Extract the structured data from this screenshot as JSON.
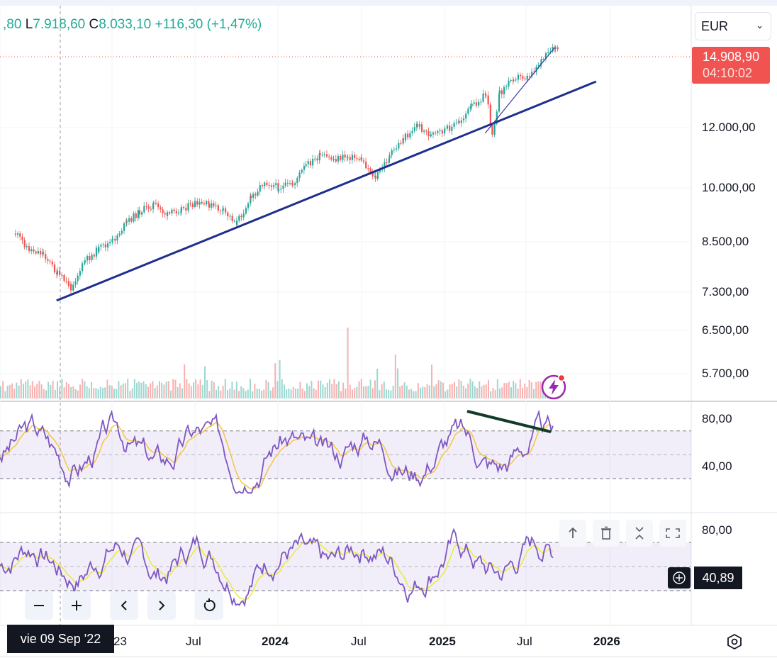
{
  "chart_data": {
    "type": "candlestick",
    "ohlc_header": {
      "open_fragment": ",80",
      "low_label": "L",
      "low": "7.918,60",
      "close_label": "C",
      "close": "8.033,10",
      "change": "+116,30 (+1,47%)"
    },
    "currency": "EUR",
    "last_price": "14.908,90",
    "countdown": "04:10:02",
    "price_scale": "log",
    "y_ticks": [
      "12.000,00",
      "10.000,00",
      "8.500,00",
      "7.300,00",
      "6.500,00",
      "5.700,00"
    ],
    "x_ticks": [
      "23",
      "Jul",
      "2024",
      "Jul",
      "2025",
      "Jul",
      "2026"
    ],
    "crosshair_date": "vie 09 Sep '22",
    "price_path": [
      {
        "x": "2022-06",
        "y": 8700
      },
      {
        "x": "2022-07",
        "y": 8300
      },
      {
        "x": "2022-08",
        "y": 8200
      },
      {
        "x": "2022-09",
        "y": 7700
      },
      {
        "x": "2022-10",
        "y": 7400
      },
      {
        "x": "2022-11",
        "y": 8000
      },
      {
        "x": "2022-12",
        "y": 8300
      },
      {
        "x": "2023-01",
        "y": 8500
      },
      {
        "x": "2023-02",
        "y": 9000
      },
      {
        "x": "2023-03",
        "y": 9300
      },
      {
        "x": "2023-04",
        "y": 9500
      },
      {
        "x": "2023-05",
        "y": 9200
      },
      {
        "x": "2023-06",
        "y": 9400
      },
      {
        "x": "2023-07",
        "y": 9500
      },
      {
        "x": "2023-08",
        "y": 9500
      },
      {
        "x": "2023-09",
        "y": 9300
      },
      {
        "x": "2023-10",
        "y": 9000
      },
      {
        "x": "2023-11",
        "y": 9700
      },
      {
        "x": "2023-12",
        "y": 10200
      },
      {
        "x": "2024-01",
        "y": 10000
      },
      {
        "x": "2024-02",
        "y": 10100
      },
      {
        "x": "2024-03",
        "y": 10700
      },
      {
        "x": "2024-04",
        "y": 11000
      },
      {
        "x": "2024-05",
        "y": 10900
      },
      {
        "x": "2024-06",
        "y": 11000
      },
      {
        "x": "2024-07",
        "y": 10900
      },
      {
        "x": "2024-08",
        "y": 10300
      },
      {
        "x": "2024-09",
        "y": 11000
      },
      {
        "x": "2024-10",
        "y": 11600
      },
      {
        "x": "2024-11",
        "y": 12100
      },
      {
        "x": "2024-12",
        "y": 11700
      },
      {
        "x": "2025-01",
        "y": 11900
      },
      {
        "x": "2025-02",
        "y": 12200
      },
      {
        "x": "2025-03",
        "y": 12800
      },
      {
        "x": "2025-04",
        "y": 13300
      },
      {
        "x": "2025-04-15",
        "y": 11800
      },
      {
        "x": "2025-05",
        "y": 13300
      },
      {
        "x": "2025-06",
        "y": 14000
      },
      {
        "x": "2025-07",
        "y": 14000
      },
      {
        "x": "2025-08",
        "y": 14700
      },
      {
        "x": "2025-09",
        "y": 15300
      },
      {
        "x": "2025-09-10",
        "y": 14909
      }
    ],
    "trendlines": [
      {
        "from": {
          "x": "2022-09",
          "y": 7100
        },
        "to": {
          "x": "2025-12",
          "y": 13800
        },
        "color": "#1e2f8c"
      },
      {
        "from": {
          "x": "2025-04",
          "y": 11800
        },
        "to": {
          "x": "2025-09",
          "y": 15300
        },
        "color": "#3a3fa8"
      }
    ],
    "oscillator_panes": [
      {
        "ticks": [
          "80,00",
          "40,00"
        ],
        "bands": [
          70,
          30
        ],
        "main_color": "#7e57c2",
        "signal_color": "#f5c542"
      },
      {
        "ticks": [
          "80,00"
        ],
        "bands": [
          70,
          30
        ],
        "main_color": "#7e57c2",
        "signal_color": "#eaea3a",
        "current_value": "40,89"
      }
    ],
    "divergence_line_color": "#0f3d2a"
  },
  "ui": {
    "zoom_out_icon": "minus-icon",
    "zoom_in_icon": "plus-icon",
    "scroll_left_icon": "chevron-left-icon",
    "scroll_right_icon": "chevron-right-icon",
    "reset_icon": "reset-icon",
    "pane_actions": [
      "arrow-up-icon",
      "trash-icon",
      "collapse-icon",
      "maximize-icon"
    ],
    "settings_icon": "settings-icon",
    "alert_icon": "lightning-icon"
  }
}
